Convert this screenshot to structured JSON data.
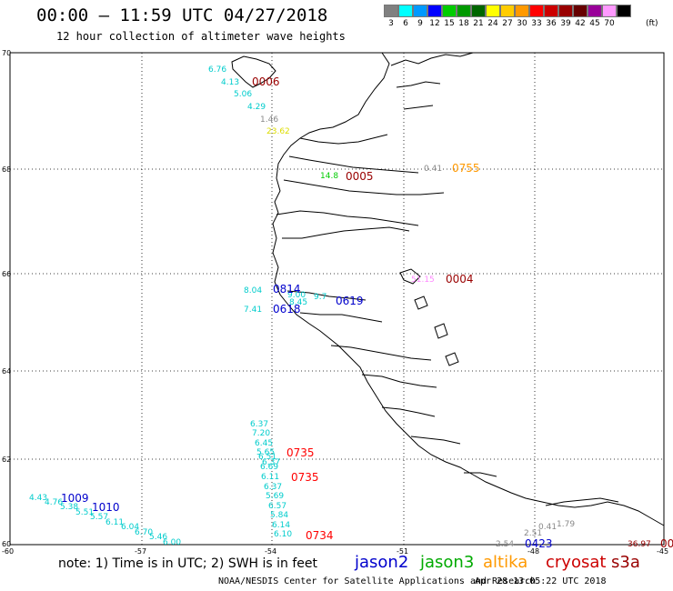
{
  "header": {
    "title": "00:00 – 11:59 UTC 04/27/2018",
    "subtitle": "12 hour collection of altimeter wave heights"
  },
  "colorbar": {
    "colors": [
      "#808080",
      "#00ffff",
      "#0099ff",
      "#0000ff",
      "#00cc00",
      "#009900",
      "#006600",
      "#ffff00",
      "#ffcc00",
      "#ff9900",
      "#ff0000",
      "#cc0000",
      "#990000",
      "#660000",
      "#990099",
      "#ff99ff",
      "#000000"
    ],
    "labels": [
      "3",
      "6",
      "9",
      "12",
      "15",
      "18",
      "21",
      "24",
      "27",
      "30",
      "33",
      "36",
      "39",
      "42",
      "45",
      "70"
    ],
    "units": "(ft)"
  },
  "axes": {
    "lat_labels": [
      "70",
      "68",
      "66",
      "64",
      "62",
      "60"
    ],
    "lon_labels": [
      "-60",
      "-57",
      "-54",
      "-51",
      "-48",
      "-45"
    ]
  },
  "observations": [
    {
      "text": "6.76",
      "color": "#00cccc"
    },
    {
      "text": "4.13",
      "color": "#00cccc"
    },
    {
      "text": "5.06",
      "color": "#00cccc"
    },
    {
      "text": "4.29",
      "color": "#00cccc"
    },
    {
      "text": "1.46",
      "color": "#888888"
    },
    {
      "text": "23.62",
      "color": "#dddd00"
    },
    {
      "text": "14.8",
      "color": "#00cc00"
    },
    {
      "text": "0.41",
      "color": "#888888"
    },
    {
      "text": "51.15",
      "color": "#ff88ff"
    },
    {
      "text": "8.04",
      "color": "#00cccc"
    },
    {
      "text": "7.41",
      "color": "#00cccc"
    },
    {
      "text": "9.00",
      "color": "#00cccc"
    },
    {
      "text": "8.45",
      "color": "#00cccc"
    },
    {
      "text": "9.7",
      "color": "#00cccc"
    },
    {
      "text": "6.37",
      "color": "#00cccc"
    },
    {
      "text": "7.20",
      "color": "#00cccc"
    },
    {
      "text": "6.45",
      "color": "#00cccc"
    },
    {
      "text": "5.65",
      "color": "#00cccc"
    },
    {
      "text": "6.51",
      "color": "#00cccc"
    },
    {
      "text": "6.69",
      "color": "#00cccc"
    },
    {
      "text": "6.37",
      "color": "#00cccc"
    },
    {
      "text": "6.11",
      "color": "#00cccc"
    },
    {
      "text": "6.37",
      "color": "#00cccc"
    },
    {
      "text": "5.69",
      "color": "#00cccc"
    },
    {
      "text": "6.57",
      "color": "#00cccc"
    },
    {
      "text": "5.84",
      "color": "#00cccc"
    },
    {
      "text": "6.14",
      "color": "#00cccc"
    },
    {
      "text": "6.10",
      "color": "#00cccc"
    },
    {
      "text": "4.43",
      "color": "#00cccc"
    },
    {
      "text": "4.76",
      "color": "#00cccc"
    },
    {
      "text": "5.38",
      "color": "#00cccc"
    },
    {
      "text": "5.51",
      "color": "#00cccc"
    },
    {
      "text": "5.57",
      "color": "#00cccc"
    },
    {
      "text": "6.11",
      "color": "#00cccc"
    },
    {
      "text": "6.04",
      "color": "#00cccc"
    },
    {
      "text": "6.70",
      "color": "#00cccc"
    },
    {
      "text": "5.46",
      "color": "#00cccc"
    },
    {
      "text": "6.00",
      "color": "#00cccc"
    },
    {
      "text": "2.54",
      "color": "#888888"
    },
    {
      "text": "2.51",
      "color": "#888888"
    },
    {
      "text": "0.41",
      "color": "#888888"
    },
    {
      "text": "1.79",
      "color": "#888888"
    },
    {
      "text": "36.97",
      "color": "#990000"
    }
  ],
  "pass_times": [
    {
      "text": "0006",
      "color": "#990000"
    },
    {
      "text": "0005",
      "color": "#990000"
    },
    {
      "text": "0755",
      "color": "#ff9900"
    },
    {
      "text": "0004",
      "color": "#990000"
    },
    {
      "text": "0814",
      "color": "#0000cc"
    },
    {
      "text": "0618",
      "color": "#0000cc"
    },
    {
      "text": "0619",
      "color": "#0000cc"
    },
    {
      "text": "0735",
      "color": "#ff0000"
    },
    {
      "text": "0735",
      "color": "#ff0000"
    },
    {
      "text": "0734",
      "color": "#ff0000"
    },
    {
      "text": "1009",
      "color": "#0000cc"
    },
    {
      "text": "1010",
      "color": "#0000cc"
    },
    {
      "text": "0423",
      "color": "#0000cc"
    },
    {
      "text": "00",
      "color": "#990000"
    }
  ],
  "footer": {
    "note": "note: 1) Time is in UTC; 2) SWH is in feet",
    "legend": [
      {
        "label": "jason2",
        "color": "#0000cc"
      },
      {
        "label": "jason3",
        "color": "#00aa00"
      },
      {
        "label": "altika",
        "color": "#ff9900"
      },
      {
        "label": "cryosat",
        "color": "#cc0000"
      },
      {
        "label": "s3a",
        "color": "#990000"
      }
    ],
    "credit": "NOAA/NESDIS Center for Satellite Applications and Research",
    "timestamp": "Apr 28 13:05:22 UTC 2018"
  }
}
